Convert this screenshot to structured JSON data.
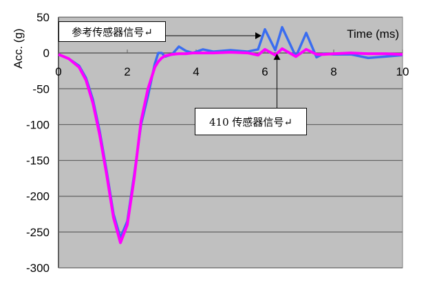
{
  "chart_data": {
    "type": "line",
    "xlabel": "Time (ms)",
    "ylabel": "Acc. (g)",
    "xlim": [
      0,
      10
    ],
    "ylim": [
      -300,
      50
    ],
    "xticks": [
      0,
      2,
      4,
      6,
      8,
      10
    ],
    "yticks": [
      50,
      0,
      -50,
      -100,
      -150,
      -200,
      -250,
      -300
    ],
    "ytick_labels": [
      "50",
      "0",
      "-50",
      "-100",
      "-150",
      "-200",
      "-250",
      "-300"
    ],
    "grid": true,
    "background": "#c0c0c0",
    "x": [
      0,
      0.3,
      0.6,
      0.8,
      1.0,
      1.2,
      1.4,
      1.6,
      1.8,
      2.0,
      2.2,
      2.4,
      2.6,
      2.8,
      2.9,
      3.0,
      3.1,
      3.3,
      3.5,
      3.7,
      3.9,
      4.2,
      4.5,
      5.0,
      5.5,
      5.8,
      6.0,
      6.3,
      6.5,
      6.9,
      7.2,
      7.5,
      7.7,
      8.0,
      8.5,
      9.0,
      9.5,
      10
    ],
    "series": [
      {
        "color": "#3a6df0",
        "values": [
          -2,
          -8,
          -18,
          -35,
          -65,
          -110,
          -165,
          -225,
          -258,
          -235,
          -170,
          -100,
          -60,
          -15,
          0,
          0,
          -5,
          -2,
          9,
          3,
          0,
          5,
          2,
          4,
          2,
          5,
          33,
          4,
          36,
          -5,
          28,
          -6,
          -1,
          -2,
          -2,
          -7,
          -5,
          -3
        ]
      },
      {
        "color": "#ff00ff",
        "values": [
          -2,
          -8,
          -20,
          -38,
          -70,
          -115,
          -170,
          -230,
          -265,
          -240,
          -175,
          -95,
          -50,
          -20,
          -12,
          -7,
          -4,
          -2,
          -1,
          -1,
          0,
          0,
          0,
          1,
          0,
          -3,
          5,
          -3,
          6,
          -5,
          5,
          -2,
          -2,
          -1,
          0,
          -1,
          -1,
          -2
        ]
      }
    ],
    "annotations": [
      {
        "text": "参考传感器信号↵",
        "points_to_x": 5.9,
        "points_to_y": 25
      },
      {
        "text": "410 传感器信号↵",
        "points_to_x": 6.35,
        "points_to_y": 0
      }
    ]
  }
}
